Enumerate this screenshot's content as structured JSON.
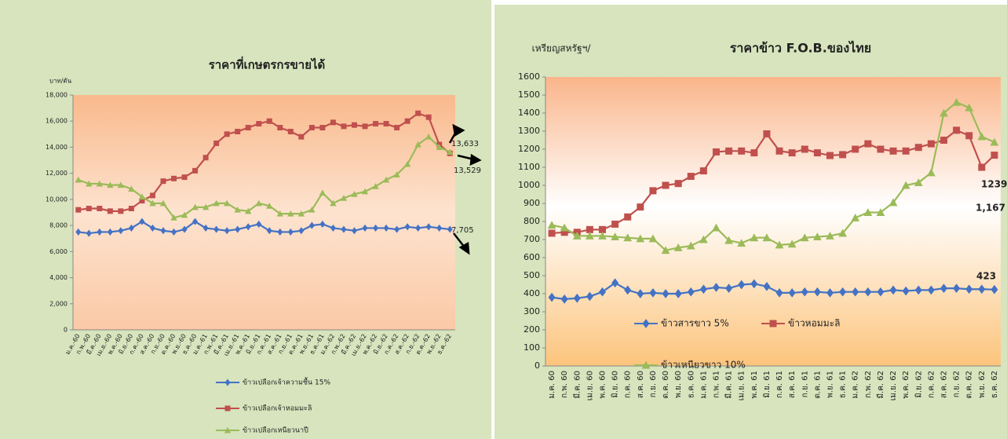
{
  "chart_data": [
    {
      "type": "line",
      "title": "ราคาที่เกษตรกรขายได้",
      "y_label": "บาท/ตัน",
      "categories": [
        "ม.ค.-60",
        "ก.พ.-60",
        "มี.ค.-60",
        "เม.ย.-60",
        "พ.ค.-60",
        "มิ.ย.-60",
        "ก.ค.-60",
        "ส.ค.-60",
        "ก.ย.-60",
        "ต.ค.-60",
        "พ.ย.-60",
        "ธ.ค.-60",
        "ม.ค.-61",
        "ก.พ.-61",
        "มี.ค.-61",
        "เม.ย.-61",
        "พ.ค.-61",
        "มิ.ย.-61",
        "ก.ค.-61",
        "ส.ค.-61",
        "ก.ย.-61",
        "ต.ค.-61",
        "พ.ย.-61",
        "ธ.ค.-61",
        "ม.ค.-62",
        "ก.พ.-62",
        "มี.ค.-62",
        "เม.ย.-62",
        "พ.ค.-62",
        "มิ.ย.-62",
        "ก.ค.-62",
        "ส.ค.-62",
        "ก.ย.-62",
        "ต.ค.-62",
        "พ.ย.-62",
        "ธ.ค.-62"
      ],
      "series": [
        {
          "name": "ข้าวเปลือกเจ้าความชื้น 15%",
          "color": "#4472c4",
          "marker": "diamond",
          "values": [
            7500,
            7400,
            7500,
            7500,
            7600,
            7800,
            8300,
            7800,
            7600,
            7500,
            7700,
            8300,
            7800,
            7700,
            7600,
            7700,
            7900,
            8100,
            7600,
            7500,
            7500,
            7600,
            8000,
            8100,
            7800,
            7700,
            7600,
            7800,
            7800,
            7800,
            7700,
            7900,
            7800,
            7900,
            7800,
            7705
          ]
        },
        {
          "name": "ข้าวเปลือกเจ้าหอมมะลิ",
          "color": "#c0504d",
          "marker": "square",
          "values": [
            9200,
            9300,
            9300,
            9100,
            9100,
            9300,
            9900,
            10300,
            11400,
            11600,
            11700,
            12200,
            13200,
            14300,
            15000,
            15200,
            15500,
            15800,
            16000,
            15500,
            15200,
            14800,
            15500,
            15500,
            15900,
            15600,
            15700,
            15600,
            15800,
            15800,
            15500,
            16000,
            16600,
            16300,
            14200,
            13529
          ]
        },
        {
          "name": "ข้าวเปลือกเหนียวนาปี",
          "color": "#9bbb59",
          "marker": "triangle",
          "values": [
            11500,
            11200,
            11200,
            11100,
            11100,
            10800,
            10200,
            9700,
            9700,
            8600,
            8800,
            9400,
            9400,
            9700,
            9700,
            9200,
            9100,
            9700,
            9500,
            8900,
            8900,
            8900,
            9200,
            10500,
            9700,
            10100,
            10400,
            10600,
            11000,
            11500,
            11900,
            12700,
            14200,
            14800,
            14000,
            13633
          ]
        }
      ],
      "ylim": [
        0,
        18000
      ],
      "yticks": [
        0,
        {
          "value": 2000,
          "label": "2,000"
        },
        {
          "value": 4000,
          "label": "4,000"
        },
        {
          "value": 6000,
          "label": "6,000"
        },
        {
          "value": 8000,
          "label": "8,000"
        },
        {
          "value": 10000,
          "label": "10,000"
        },
        {
          "value": 12000,
          "label": "12,000"
        },
        {
          "value": 14000,
          "label": "14,000"
        },
        {
          "value": 16000,
          "label": "16,000"
        },
        {
          "value": 18000,
          "label": "18,000"
        }
      ],
      "annotations": [
        "13,633",
        "13,529",
        "7,705"
      ]
    },
    {
      "type": "line",
      "title": "ราคาข้าว F.O.B.ของไทย",
      "y_label": "เหรียญสหรัฐฯ/",
      "categories": [
        "ม.ค. 60",
        "ก.พ. 60",
        "มี.ค. 60",
        "เม.ย. 60",
        "พ.ค. 60",
        "มิ.ย. 60",
        "ก.ค. 60",
        "ส.ค. 60",
        "ก.ย. 60",
        "ต.ค. 60",
        "พ.ย. 60",
        "ธ.ค. 60",
        "ม.ค. 61",
        "ก.พ. 61",
        "มี.ค. 61",
        "เม.ย. 61",
        "พ.ค. 61",
        "มิ.ย. 61",
        "ก.ค. 61",
        "ส.ค. 61",
        "ก.ย. 61",
        "ต.ค. 61",
        "พ.ย. 61",
        "ธ.ค. 61",
        "ม.ค. 62",
        "ก.พ. 62",
        "มี.ค. 62",
        "เม.ย. 62",
        "พ.ค. 62",
        "มิ.ย. 62",
        "ก.ค. 62",
        "ส.ค. 62",
        "ก.ย. 62",
        "ต.ค. 62",
        "พ.ย. 62",
        "ธ.ค. 62"
      ],
      "series": [
        {
          "name": "ข้าวสารขาว 5%",
          "color": "#4472c4",
          "marker": "diamond",
          "values": [
            380,
            370,
            375,
            385,
            410,
            460,
            420,
            400,
            405,
            400,
            400,
            410,
            425,
            435,
            430,
            450,
            455,
            440,
            405,
            405,
            410,
            410,
            405,
            410,
            410,
            410,
            410,
            420,
            415,
            420,
            420,
            430,
            430,
            425,
            425,
            423
          ]
        },
        {
          "name": "ข้าวหอมมะลิ",
          "color": "#c0504d",
          "marker": "square",
          "values": [
            735,
            740,
            740,
            755,
            755,
            785,
            825,
            880,
            970,
            1000,
            1010,
            1050,
            1080,
            1185,
            1190,
            1190,
            1180,
            1285,
            1190,
            1180,
            1200,
            1180,
            1165,
            1170,
            1200,
            1230,
            1200,
            1190,
            1190,
            1210,
            1230,
            1250,
            1305,
            1275,
            1100,
            1167
          ]
        },
        {
          "name": "ข้าวเหนียวขาว 10%",
          "color": "#9bbb59",
          "marker": "triangle",
          "values": [
            780,
            765,
            720,
            720,
            720,
            715,
            710,
            705,
            705,
            640,
            655,
            665,
            700,
            765,
            695,
            680,
            710,
            710,
            670,
            675,
            710,
            715,
            720,
            735,
            820,
            850,
            850,
            905,
            1000,
            1015,
            1070,
            1400,
            1460,
            1430,
            1270,
            1239
          ]
        }
      ],
      "ylim": [
        0,
        1600
      ],
      "yticks": [
        0,
        100,
        200,
        300,
        400,
        500,
        600,
        700,
        800,
        900,
        1000,
        1100,
        1200,
        1300,
        1400,
        1500,
        1600
      ],
      "annotations": [
        "1239",
        "1,167",
        "423"
      ]
    }
  ]
}
